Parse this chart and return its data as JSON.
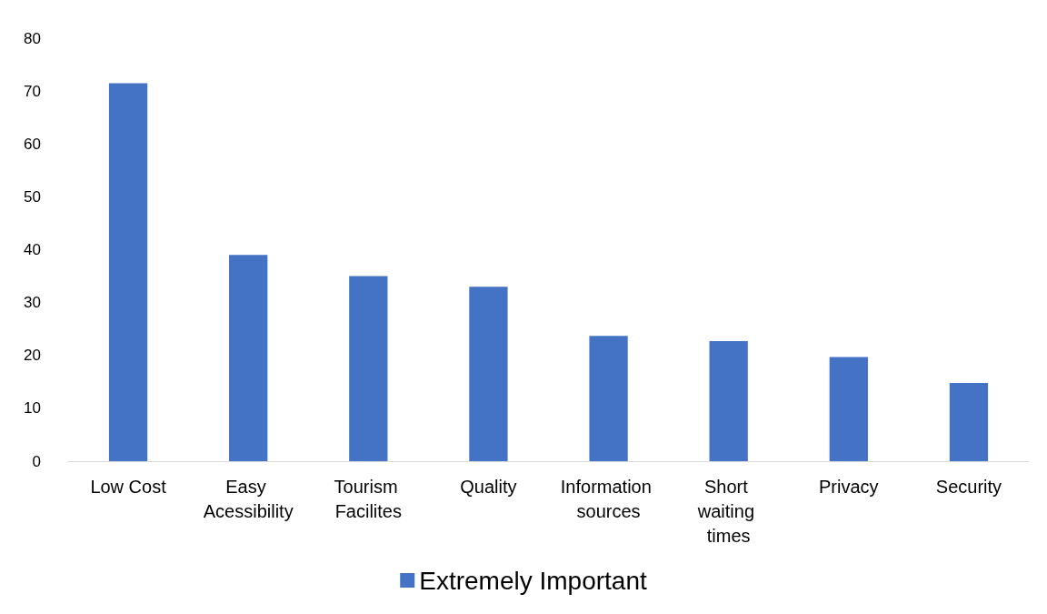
{
  "chart_data": {
    "type": "bar",
    "categories": [
      "Low Cost",
      "Easy Acessibility",
      "Tourism Facilites",
      "Quality",
      "Information sources",
      "Short waiting times",
      "Privacy",
      "Security"
    ],
    "series": [
      {
        "name": "Extremely Important",
        "color": "#4472c4",
        "values": [
          71.5,
          39,
          35,
          33,
          23.7,
          22.7,
          19.7,
          14.8
        ]
      }
    ],
    "ylim": [
      0,
      80
    ],
    "yticks": [
      0,
      10,
      20,
      30,
      40,
      50,
      60,
      70,
      80
    ],
    "grid": false,
    "legend": "bottom"
  }
}
